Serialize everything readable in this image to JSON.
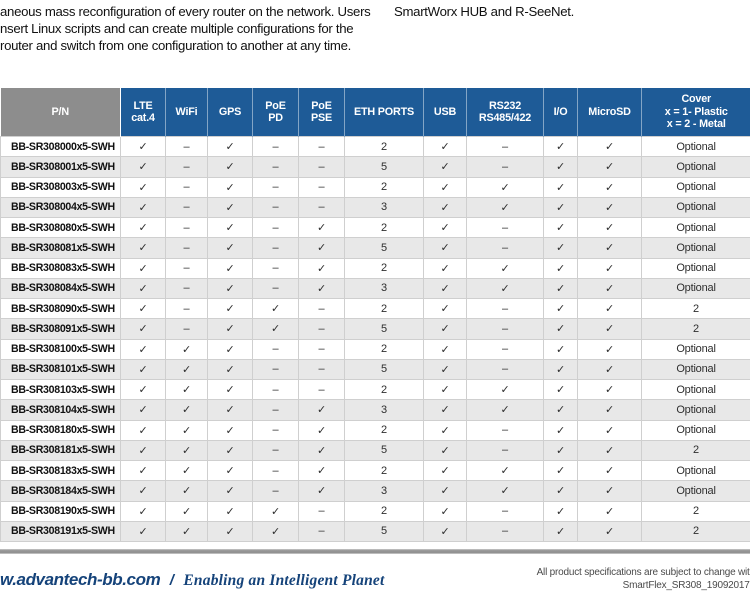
{
  "colors": {
    "header_blue": "#1e5b97",
    "header_gray": "#8d8d8d",
    "row_alt": "#e8e8e8",
    "footer_blue": "#15437a",
    "divider_gray": "#969696"
  },
  "intro": {
    "left_lines": {
      "0": "aneous mass reconfiguration of every router on the network. Users",
      "1": "nsert Linux scripts and can create multiple configurations for the",
      "2": "router and switch from one configuration to another at any time."
    },
    "right_line": "SmartWorx HUB and R-SeeNet."
  },
  "table": {
    "columns": [
      {
        "key": "pn",
        "lines": [
          "P/N"
        ]
      },
      {
        "key": "lte",
        "lines": [
          "LTE",
          "cat.4"
        ]
      },
      {
        "key": "wifi",
        "lines": [
          "WiFi"
        ]
      },
      {
        "key": "gps",
        "lines": [
          "GPS"
        ]
      },
      {
        "key": "poe-pd",
        "lines": [
          "PoE",
          "PD"
        ]
      },
      {
        "key": "poe-pse",
        "lines": [
          "PoE",
          "PSE"
        ]
      },
      {
        "key": "eth-ports",
        "lines": [
          "ETH PORTS"
        ]
      },
      {
        "key": "usb",
        "lines": [
          "USB"
        ]
      },
      {
        "key": "rs232",
        "lines": [
          "RS232",
          "RS485/422"
        ]
      },
      {
        "key": "io",
        "lines": [
          "I/O"
        ]
      },
      {
        "key": "microsd",
        "lines": [
          "MicroSD"
        ]
      },
      {
        "key": "cover",
        "lines": [
          "Cover",
          "x = 1- Plastic",
          "x = 2 - Metal"
        ]
      }
    ],
    "check": "✓",
    "dash": "–",
    "rows": [
      {
        "pn": "BB-SR308000x5-SWH",
        "cells": [
          "✓",
          "–",
          "✓",
          "–",
          "–",
          "2",
          "✓",
          "–",
          "✓",
          "✓",
          "Optional"
        ]
      },
      {
        "pn": "BB-SR308001x5-SWH",
        "cells": [
          "✓",
          "–",
          "✓",
          "–",
          "–",
          "5",
          "✓",
          "–",
          "✓",
          "✓",
          "Optional"
        ]
      },
      {
        "pn": "BB-SR308003x5-SWH",
        "cells": [
          "✓",
          "–",
          "✓",
          "–",
          "–",
          "2",
          "✓",
          "✓",
          "✓",
          "✓",
          "Optional"
        ]
      },
      {
        "pn": "BB-SR308004x5-SWH",
        "cells": [
          "✓",
          "–",
          "✓",
          "–",
          "–",
          "3",
          "✓",
          "✓",
          "✓",
          "✓",
          "Optional"
        ]
      },
      {
        "pn": "BB-SR308080x5-SWH",
        "cells": [
          "✓",
          "–",
          "✓",
          "–",
          "✓",
          "2",
          "✓",
          "–",
          "✓",
          "✓",
          "Optional"
        ]
      },
      {
        "pn": "BB-SR308081x5-SWH",
        "cells": [
          "✓",
          "–",
          "✓",
          "–",
          "✓",
          "5",
          "✓",
          "–",
          "✓",
          "✓",
          "Optional"
        ]
      },
      {
        "pn": "BB-SR308083x5-SWH",
        "cells": [
          "✓",
          "–",
          "✓",
          "–",
          "✓",
          "2",
          "✓",
          "✓",
          "✓",
          "✓",
          "Optional"
        ]
      },
      {
        "pn": "BB-SR308084x5-SWH",
        "cells": [
          "✓",
          "–",
          "✓",
          "–",
          "✓",
          "3",
          "✓",
          "✓",
          "✓",
          "✓",
          "Optional"
        ]
      },
      {
        "pn": "BB-SR308090x5-SWH",
        "cells": [
          "✓",
          "–",
          "✓",
          "✓",
          "–",
          "2",
          "✓",
          "–",
          "✓",
          "✓",
          "2"
        ]
      },
      {
        "pn": "BB-SR308091x5-SWH",
        "cells": [
          "✓",
          "–",
          "✓",
          "✓",
          "–",
          "5",
          "✓",
          "–",
          "✓",
          "✓",
          "2"
        ]
      },
      {
        "pn": "BB-SR308100x5-SWH",
        "cells": [
          "✓",
          "✓",
          "✓",
          "–",
          "–",
          "2",
          "✓",
          "–",
          "✓",
          "✓",
          "Optional"
        ]
      },
      {
        "pn": "BB-SR308101x5-SWH",
        "cells": [
          "✓",
          "✓",
          "✓",
          "–",
          "–",
          "5",
          "✓",
          "–",
          "✓",
          "✓",
          "Optional"
        ]
      },
      {
        "pn": "BB-SR308103x5-SWH",
        "cells": [
          "✓",
          "✓",
          "✓",
          "–",
          "–",
          "2",
          "✓",
          "✓",
          "✓",
          "✓",
          "Optional"
        ]
      },
      {
        "pn": "BB-SR308104x5-SWH",
        "cells": [
          "✓",
          "✓",
          "✓",
          "–",
          "✓",
          "3",
          "✓",
          "✓",
          "✓",
          "✓",
          "Optional"
        ]
      },
      {
        "pn": "BB-SR308180x5-SWH",
        "cells": [
          "✓",
          "✓",
          "✓",
          "–",
          "✓",
          "2",
          "✓",
          "–",
          "✓",
          "✓",
          "Optional"
        ]
      },
      {
        "pn": "BB-SR308181x5-SWH",
        "cells": [
          "✓",
          "✓",
          "✓",
          "–",
          "✓",
          "5",
          "✓",
          "–",
          "✓",
          "✓",
          "2"
        ]
      },
      {
        "pn": "BB-SR308183x5-SWH",
        "cells": [
          "✓",
          "✓",
          "✓",
          "–",
          "✓",
          "2",
          "✓",
          "✓",
          "✓",
          "✓",
          "Optional"
        ]
      },
      {
        "pn": "BB-SR308184x5-SWH",
        "cells": [
          "✓",
          "✓",
          "✓",
          "–",
          "✓",
          "3",
          "✓",
          "✓",
          "✓",
          "✓",
          "Optional"
        ]
      },
      {
        "pn": "BB-SR308190x5-SWH",
        "cells": [
          "✓",
          "✓",
          "✓",
          "✓",
          "–",
          "2",
          "✓",
          "–",
          "✓",
          "✓",
          "2"
        ]
      },
      {
        "pn": "BB-SR308191x5-SWH",
        "cells": [
          "✓",
          "✓",
          "✓",
          "✓",
          "–",
          "5",
          "✓",
          "–",
          "✓",
          "✓",
          "2"
        ]
      }
    ]
  },
  "footer": {
    "site": "w.advantech-bb.com",
    "slash": "/",
    "tagline": "Enabling an Intelligent Planet",
    "note_line1": "All product specifications are subject to change with",
    "note_line2": "SmartFlex_SR308_19092017d"
  }
}
